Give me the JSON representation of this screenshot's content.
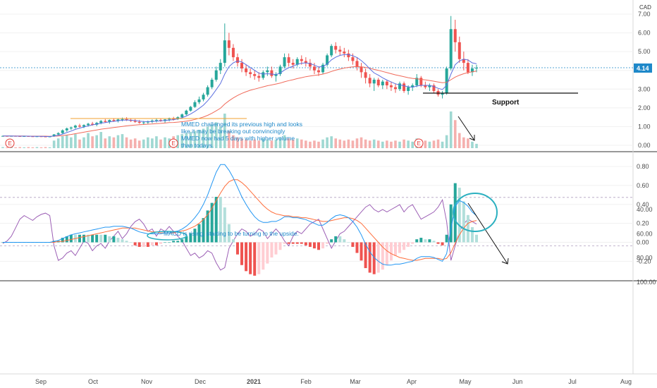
{
  "chart_data": [
    {
      "type": "candlestick",
      "currency": "CAD",
      "last_price": "4.14",
      "y_ticks": [
        "7.00",
        "6.00",
        "5.00",
        "4.00",
        "3.00",
        "2.00",
        "1.00",
        "0.00"
      ],
      "ylim": [
        0,
        7.4
      ],
      "ohlc": [
        [
          0.5,
          0.52,
          0.48,
          0.5
        ],
        [
          0.5,
          0.51,
          0.48,
          0.49
        ],
        [
          0.49,
          0.51,
          0.47,
          0.5
        ],
        [
          0.5,
          0.52,
          0.48,
          0.49
        ],
        [
          0.49,
          0.5,
          0.47,
          0.48
        ],
        [
          0.48,
          0.5,
          0.46,
          0.49
        ],
        [
          0.49,
          0.51,
          0.47,
          0.48
        ],
        [
          0.48,
          0.5,
          0.46,
          0.47
        ],
        [
          0.47,
          0.49,
          0.45,
          0.48
        ],
        [
          0.48,
          0.5,
          0.46,
          0.47
        ],
        [
          0.47,
          0.49,
          0.45,
          0.46
        ],
        [
          0.46,
          0.48,
          0.44,
          0.47
        ],
        [
          0.47,
          0.6,
          0.45,
          0.58
        ],
        [
          0.58,
          0.7,
          0.55,
          0.65
        ],
        [
          0.65,
          0.85,
          0.6,
          0.8
        ],
        [
          0.8,
          0.95,
          0.72,
          0.9
        ],
        [
          0.9,
          1.0,
          0.82,
          0.95
        ],
        [
          0.95,
          1.1,
          0.88,
          1.05
        ],
        [
          1.05,
          1.15,
          0.95,
          1.0
        ],
        [
          1.0,
          1.12,
          0.92,
          1.08
        ],
        [
          1.08,
          1.2,
          1.0,
          1.15
        ],
        [
          1.15,
          1.25,
          1.05,
          1.1
        ],
        [
          1.1,
          1.25,
          1.02,
          1.2
        ],
        [
          1.2,
          1.35,
          1.12,
          1.3
        ],
        [
          1.3,
          1.4,
          1.2,
          1.25
        ],
        [
          1.25,
          1.38,
          1.15,
          1.35
        ],
        [
          1.35,
          1.45,
          1.25,
          1.3
        ],
        [
          1.3,
          1.42,
          1.22,
          1.38
        ],
        [
          1.38,
          1.48,
          1.28,
          1.4
        ],
        [
          1.4,
          1.5,
          1.3,
          1.35
        ],
        [
          1.35,
          1.45,
          1.25,
          1.3
        ],
        [
          1.3,
          1.4,
          1.2,
          1.25
        ],
        [
          1.25,
          1.35,
          1.15,
          1.2
        ],
        [
          1.2,
          1.3,
          1.1,
          1.22
        ],
        [
          1.22,
          1.32,
          1.12,
          1.28
        ],
        [
          1.28,
          1.38,
          1.18,
          1.32
        ],
        [
          1.32,
          1.42,
          1.22,
          1.35
        ],
        [
          1.35,
          1.45,
          1.25,
          1.3
        ],
        [
          1.3,
          1.4,
          1.2,
          1.38
        ],
        [
          1.38,
          1.48,
          1.28,
          1.42
        ],
        [
          1.42,
          1.52,
          1.32,
          1.4
        ],
        [
          1.4,
          1.55,
          1.35,
          1.5
        ],
        [
          1.5,
          1.7,
          1.45,
          1.65
        ],
        [
          1.65,
          1.9,
          1.6,
          1.85
        ],
        [
          1.85,
          2.1,
          1.8,
          2.05
        ],
        [
          2.05,
          2.4,
          2.0,
          2.3
        ],
        [
          2.3,
          2.6,
          2.2,
          2.45
        ],
        [
          2.45,
          2.8,
          2.35,
          2.7
        ],
        [
          2.7,
          3.2,
          2.6,
          3.1
        ],
        [
          3.1,
          3.6,
          3.0,
          3.5
        ],
        [
          3.5,
          4.2,
          3.4,
          4.0
        ],
        [
          4.0,
          4.6,
          3.8,
          4.4
        ],
        [
          4.4,
          6.5,
          4.2,
          5.6
        ],
        [
          5.6,
          6.0,
          4.8,
          5.2
        ],
        [
          5.2,
          5.4,
          4.5,
          4.7
        ],
        [
          4.7,
          4.9,
          4.2,
          4.4
        ],
        [
          4.4,
          4.6,
          3.9,
          4.1
        ],
        [
          4.1,
          4.3,
          3.7,
          3.9
        ],
        [
          3.9,
          4.1,
          3.6,
          3.8
        ],
        [
          3.8,
          4.0,
          3.5,
          3.7
        ],
        [
          3.7,
          3.9,
          3.4,
          3.6
        ],
        [
          3.6,
          4.0,
          3.5,
          3.9
        ],
        [
          3.9,
          4.2,
          3.7,
          4.0
        ],
        [
          4.0,
          4.2,
          3.6,
          3.7
        ],
        [
          3.7,
          3.9,
          3.4,
          3.8
        ],
        [
          3.8,
          4.3,
          3.7,
          4.2
        ],
        [
          4.2,
          4.9,
          4.1,
          4.7
        ],
        [
          4.7,
          4.9,
          4.2,
          4.4
        ],
        [
          4.4,
          4.6,
          4.1,
          4.3
        ],
        [
          4.3,
          4.7,
          4.2,
          4.6
        ],
        [
          4.6,
          4.8,
          4.3,
          4.5
        ],
        [
          4.5,
          4.7,
          4.2,
          4.4
        ],
        [
          4.4,
          4.6,
          4.0,
          4.2
        ],
        [
          4.2,
          4.4,
          3.8,
          4.0
        ],
        [
          4.0,
          4.2,
          3.7,
          3.9
        ],
        [
          3.9,
          4.4,
          3.8,
          4.3
        ],
        [
          4.3,
          4.9,
          4.2,
          4.8
        ],
        [
          4.8,
          5.4,
          4.7,
          5.3
        ],
        [
          5.3,
          5.5,
          4.9,
          5.1
        ],
        [
          5.1,
          5.3,
          4.8,
          5.0
        ],
        [
          5.0,
          5.2,
          4.7,
          4.9
        ],
        [
          4.9,
          5.1,
          4.5,
          4.7
        ],
        [
          4.7,
          4.9,
          4.3,
          4.5
        ],
        [
          4.5,
          4.7,
          4.0,
          4.2
        ],
        [
          4.2,
          4.4,
          3.6,
          3.9
        ],
        [
          3.9,
          4.1,
          3.3,
          3.6
        ],
        [
          3.6,
          3.8,
          3.1,
          3.3
        ],
        [
          3.3,
          3.6,
          2.9,
          3.5
        ],
        [
          3.5,
          3.6,
          3.1,
          3.2
        ],
        [
          3.2,
          3.5,
          3.0,
          3.4
        ],
        [
          3.4,
          3.5,
          3.0,
          3.2
        ],
        [
          3.2,
          3.4,
          2.9,
          3.1
        ],
        [
          3.1,
          3.3,
          2.8,
          3.0
        ],
        [
          3.0,
          3.4,
          2.9,
          3.3
        ],
        [
          3.3,
          3.4,
          2.8,
          2.9
        ],
        [
          2.9,
          3.2,
          2.7,
          3.1
        ],
        [
          3.1,
          3.3,
          2.9,
          3.2
        ],
        [
          3.2,
          3.8,
          3.1,
          3.6
        ],
        [
          3.6,
          3.7,
          3.1,
          3.2
        ],
        [
          3.2,
          3.4,
          3.0,
          3.1
        ],
        [
          3.1,
          3.3,
          2.9,
          3.2
        ],
        [
          3.2,
          3.3,
          2.8,
          2.9
        ],
        [
          2.9,
          3.0,
          2.6,
          2.7
        ],
        [
          2.7,
          2.9,
          2.5,
          2.8
        ],
        [
          2.8,
          4.2,
          2.7,
          4.1
        ],
        [
          4.1,
          6.9,
          4.0,
          6.2
        ],
        [
          6.2,
          6.7,
          5.0,
          5.5
        ],
        [
          5.5,
          5.8,
          4.4,
          4.6
        ],
        [
          4.6,
          5.0,
          4.0,
          4.4
        ],
        [
          4.4,
          4.6,
          3.8,
          3.9
        ],
        [
          3.9,
          4.3,
          3.7,
          4.1
        ],
        [
          4.1,
          4.3,
          3.9,
          4.14
        ]
      ],
      "volume": [
        0.05,
        0.04,
        0.05,
        0.04,
        0.05,
        0.04,
        0.05,
        0.04,
        0.05,
        0.04,
        0.05,
        0.04,
        0.35,
        0.45,
        0.55,
        0.6,
        0.5,
        0.65,
        0.4,
        0.5,
        0.7,
        0.55,
        0.6,
        0.75,
        0.45,
        0.55,
        0.5,
        0.6,
        0.65,
        0.5,
        0.4,
        0.45,
        0.35,
        0.4,
        0.5,
        0.45,
        0.55,
        0.4,
        0.5,
        0.45,
        0.55,
        0.6,
        0.65,
        0.7,
        0.75,
        0.8,
        0.85,
        0.9,
        1.0,
        1.1,
        1.2,
        1.0,
        1.6,
        0.8,
        0.6,
        0.5,
        0.45,
        0.4,
        0.35,
        0.4,
        0.35,
        0.45,
        0.4,
        0.35,
        0.4,
        0.5,
        0.6,
        0.45,
        0.4,
        0.45,
        0.4,
        0.35,
        0.3,
        0.35,
        0.3,
        0.4,
        0.5,
        0.55,
        0.45,
        0.4,
        0.35,
        0.4,
        0.35,
        0.45,
        0.5,
        0.4,
        0.35,
        0.4,
        0.35,
        0.3,
        0.35,
        0.3,
        0.35,
        0.3,
        0.4,
        0.35,
        0.3,
        0.45,
        0.4,
        0.35,
        0.3,
        0.35,
        0.4,
        0.3,
        0.6,
        1.7,
        1.3,
        0.7,
        0.5,
        0.45,
        0.3,
        0.2
      ],
      "ma_fast": [
        0.5,
        0.5,
        0.5,
        0.49,
        0.49,
        0.49,
        0.49,
        0.48,
        0.48,
        0.48,
        0.47,
        0.47,
        0.5,
        0.54,
        0.6,
        0.68,
        0.76,
        0.85,
        0.92,
        0.98,
        1.04,
        1.09,
        1.13,
        1.18,
        1.21,
        1.25,
        1.28,
        1.31,
        1.34,
        1.35,
        1.34,
        1.32,
        1.29,
        1.27,
        1.26,
        1.27,
        1.29,
        1.31,
        1.32,
        1.35,
        1.37,
        1.41,
        1.47,
        1.56,
        1.67,
        1.81,
        1.97,
        2.14,
        2.38,
        2.65,
        2.97,
        3.3,
        3.8,
        4.2,
        4.4,
        4.5,
        4.45,
        4.3,
        4.15,
        4.0,
        3.85,
        3.8,
        3.82,
        3.8,
        3.78,
        3.85,
        4.02,
        4.14,
        4.22,
        4.32,
        4.38,
        4.4,
        4.36,
        4.28,
        4.18,
        4.2,
        4.34,
        4.56,
        4.7,
        4.8,
        4.84,
        4.84,
        4.78,
        4.68,
        4.52,
        4.32,
        4.08,
        3.86,
        3.74,
        3.6,
        3.48,
        3.38,
        3.28,
        3.22,
        3.18,
        3.12,
        3.1,
        3.16,
        3.2,
        3.2,
        3.2,
        3.14,
        3.04,
        2.98,
        3.2,
        3.8,
        4.3,
        4.5,
        4.6,
        4.55,
        4.4,
        4.35
      ],
      "ma_slow": [
        0.5,
        0.5,
        0.5,
        0.5,
        0.5,
        0.5,
        0.49,
        0.49,
        0.49,
        0.49,
        0.49,
        0.48,
        0.49,
        0.5,
        0.52,
        0.55,
        0.58,
        0.62,
        0.66,
        0.7,
        0.74,
        0.78,
        0.82,
        0.86,
        0.89,
        0.92,
        0.95,
        0.98,
        1.01,
        1.04,
        1.06,
        1.08,
        1.1,
        1.11,
        1.13,
        1.14,
        1.16,
        1.17,
        1.19,
        1.21,
        1.22,
        1.24,
        1.26,
        1.29,
        1.33,
        1.38,
        1.44,
        1.51,
        1.6,
        1.71,
        1.84,
        1.98,
        2.2,
        2.38,
        2.53,
        2.66,
        2.77,
        2.86,
        2.94,
        3.0,
        3.06,
        3.12,
        3.18,
        3.22,
        3.27,
        3.32,
        3.39,
        3.45,
        3.5,
        3.56,
        3.61,
        3.66,
        3.7,
        3.73,
        3.76,
        3.8,
        3.86,
        3.94,
        4.01,
        4.07,
        4.12,
        4.16,
        4.19,
        4.2,
        4.19,
        4.16,
        4.11,
        4.05,
        4.0,
        3.94,
        3.88,
        3.82,
        3.76,
        3.71,
        3.66,
        3.61,
        3.57,
        3.55,
        3.52,
        3.49,
        3.46,
        3.42,
        3.38,
        3.34,
        3.36,
        3.5,
        3.64,
        3.74,
        3.82,
        3.88,
        3.92,
        3.96
      ],
      "events": [
        "E",
        "E",
        "E"
      ],
      "annotations": [
        "MMED challenged its previous high and looks",
        "like it may be breaking out convincingly",
        "MMED now had 5 days with higher volume",
        "than todays."
      ],
      "support_label": "Support"
    },
    {
      "type": "macd",
      "y_ticks": [
        "0.80",
        "0.60",
        "0.40",
        "0.20",
        "0.00",
        "-0.20"
      ],
      "ylim": [
        -0.3,
        0.88
      ],
      "annotation": "MACD is rising, starting to be turning to the upside.",
      "macd": [
        0.0,
        0.0,
        0.0,
        0.0,
        0.0,
        0.0,
        0.0,
        0.0,
        0.0,
        0.0,
        0.0,
        0.0,
        0.01,
        0.02,
        0.04,
        0.06,
        0.08,
        0.09,
        0.1,
        0.11,
        0.12,
        0.13,
        0.14,
        0.15,
        0.16,
        0.16,
        0.17,
        0.17,
        0.17,
        0.16,
        0.15,
        0.13,
        0.11,
        0.1,
        0.09,
        0.09,
        0.09,
        0.09,
        0.1,
        0.1,
        0.11,
        0.12,
        0.14,
        0.17,
        0.21,
        0.26,
        0.32,
        0.4,
        0.5,
        0.62,
        0.74,
        0.82,
        0.82,
        0.76,
        0.68,
        0.58,
        0.48,
        0.4,
        0.33,
        0.27,
        0.23,
        0.21,
        0.21,
        0.22,
        0.22,
        0.24,
        0.27,
        0.27,
        0.26,
        0.26,
        0.25,
        0.24,
        0.22,
        0.2,
        0.18,
        0.18,
        0.21,
        0.25,
        0.28,
        0.29,
        0.28,
        0.26,
        0.22,
        0.16,
        0.08,
        -0.02,
        -0.1,
        -0.16,
        -0.2,
        -0.23,
        -0.24,
        -0.24,
        -0.23,
        -0.23,
        -0.22,
        -0.21,
        -0.2,
        -0.17,
        -0.15,
        -0.15,
        -0.15,
        -0.16,
        -0.18,
        -0.2,
        -0.12,
        0.14,
        0.38,
        0.44,
        0.42,
        0.38,
        0.32,
        0.28
      ],
      "signal": [
        0.0,
        0.0,
        0.0,
        0.0,
        0.0,
        0.0,
        0.0,
        0.0,
        0.0,
        0.0,
        0.0,
        0.0,
        0.0,
        0.01,
        0.01,
        0.02,
        0.03,
        0.04,
        0.05,
        0.06,
        0.07,
        0.08,
        0.09,
        0.1,
        0.11,
        0.12,
        0.13,
        0.14,
        0.15,
        0.15,
        0.15,
        0.15,
        0.14,
        0.13,
        0.12,
        0.11,
        0.11,
        0.1,
        0.1,
        0.1,
        0.1,
        0.11,
        0.12,
        0.13,
        0.15,
        0.17,
        0.2,
        0.24,
        0.29,
        0.36,
        0.44,
        0.52,
        0.59,
        0.64,
        0.66,
        0.66,
        0.63,
        0.59,
        0.54,
        0.49,
        0.44,
        0.39,
        0.35,
        0.32,
        0.3,
        0.29,
        0.28,
        0.28,
        0.27,
        0.27,
        0.26,
        0.26,
        0.25,
        0.24,
        0.23,
        0.22,
        0.22,
        0.23,
        0.24,
        0.25,
        0.26,
        0.26,
        0.25,
        0.23,
        0.2,
        0.15,
        0.1,
        0.05,
        0.0,
        -0.05,
        -0.09,
        -0.12,
        -0.14,
        -0.16,
        -0.17,
        -0.18,
        -0.19,
        -0.19,
        -0.18,
        -0.17,
        -0.17,
        -0.17,
        -0.17,
        -0.18,
        -0.17,
        -0.11,
        -0.01,
        0.08,
        0.15,
        0.2,
        0.22,
        0.23
      ]
    },
    {
      "type": "rsi",
      "y_ticks": [
        "100.00",
        "80.00",
        "60.00",
        "40.00"
      ],
      "ylim": [
        28,
        100
      ],
      "band": [
        30,
        70
      ],
      "values": [
        68,
        66,
        62,
        55,
        48,
        45,
        47,
        49,
        46,
        44,
        43,
        45,
        70,
        82,
        80,
        76,
        74,
        78,
        72,
        66,
        68,
        74,
        70,
        68,
        72,
        66,
        62,
        58,
        64,
        60,
        54,
        50,
        48,
        52,
        58,
        56,
        62,
        56,
        58,
        54,
        58,
        62,
        66,
        72,
        78,
        76,
        80,
        78,
        74,
        76,
        84,
        90,
        88,
        72,
        66,
        60,
        56,
        58,
        62,
        60,
        56,
        58,
        64,
        60,
        56,
        60,
        66,
        70,
        62,
        58,
        60,
        56,
        52,
        50,
        48,
        56,
        64,
        72,
        66,
        60,
        58,
        54,
        50,
        46,
        42,
        38,
        36,
        40,
        42,
        40,
        42,
        40,
        38,
        36,
        42,
        38,
        36,
        42,
        48,
        46,
        44,
        42,
        38,
        32,
        50,
        82,
        70,
        58,
        52,
        48,
        50,
        52
      ],
      "x_labels": [
        "Sep",
        "Oct",
        "Nov",
        "Dec",
        "2021",
        "Feb",
        "Mar",
        "Apr",
        "May",
        "Jun",
        "Jul",
        "Aug"
      ]
    }
  ],
  "colors": {
    "up": "#26a69a",
    "down": "#ef5350",
    "ma_fast": "#5b6fe0",
    "ma_slow": "#f06a5a",
    "macd": "#2196f3",
    "signal": "#ff6d3a",
    "rsi": "#9c5fb5",
    "rsi_band": "#f1e3fb",
    "annotation": "#1e88c9",
    "price_badge": "#1e88c9",
    "hline": "#f0a030"
  }
}
